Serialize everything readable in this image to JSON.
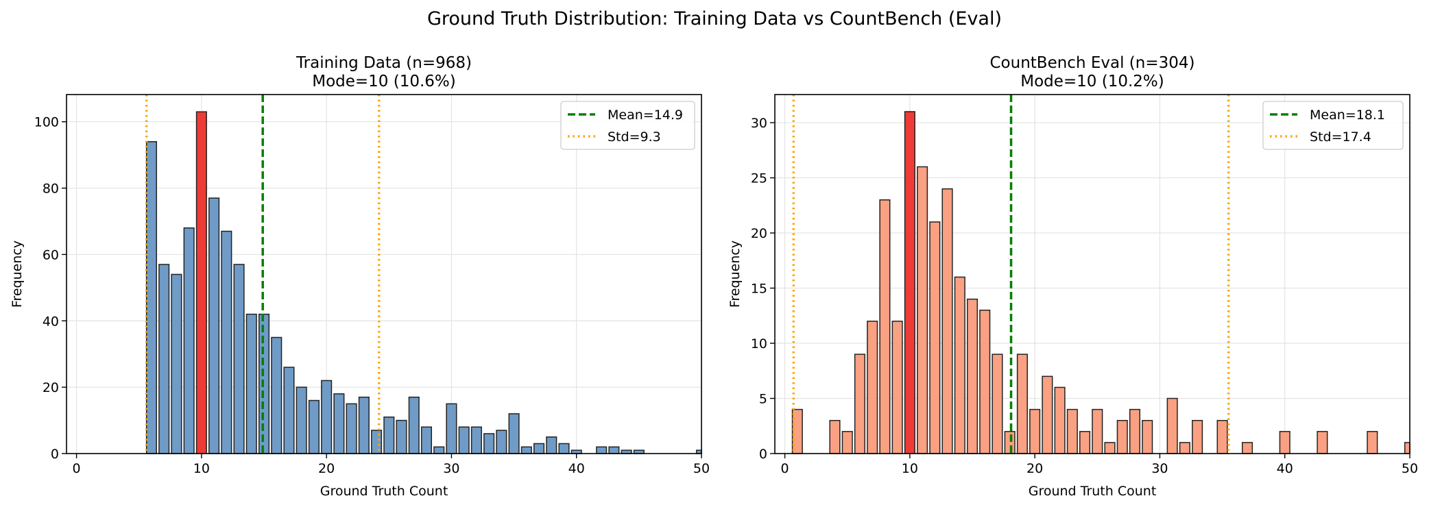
{
  "suptitle": "Ground Truth Distribution: Training Data vs CountBench (Eval)",
  "chart_data": [
    {
      "type": "bar",
      "title_line1": "Training Data (n=968)",
      "title_line2": "Mode=10 (10.6%)",
      "xlabel": "Ground Truth Count",
      "ylabel": "Frequency",
      "xlim": [
        -0.8,
        50
      ],
      "ylim": [
        0,
        108.2
      ],
      "xticks": [
        0,
        10,
        20,
        30,
        40,
        50
      ],
      "yticks": [
        0,
        20,
        40,
        60,
        80,
        100
      ],
      "grid": true,
      "legend_position": "top-right",
      "bar_color": "#6f9bc6",
      "mode_color": "#ef3b36",
      "mode_value": 10,
      "mean": 14.9,
      "std": 9.3,
      "mean_label": "Mean=14.9",
      "std_label": "Std=9.3",
      "mean_color": "#008000",
      "std_color": "#ffa500",
      "x": [
        6,
        7,
        8,
        9,
        10,
        11,
        12,
        13,
        14,
        15,
        16,
        17,
        18,
        19,
        20,
        21,
        22,
        23,
        24,
        25,
        26,
        27,
        28,
        29,
        30,
        31,
        32,
        33,
        34,
        35,
        36,
        37,
        38,
        39,
        40,
        42,
        43,
        44,
        45,
        50
      ],
      "values": [
        94,
        57,
        54,
        68,
        103,
        77,
        67,
        57,
        42,
        42,
        35,
        26,
        20,
        16,
        22,
        18,
        15,
        17,
        7,
        11,
        10,
        17,
        8,
        2,
        15,
        8,
        8,
        6,
        7,
        12,
        2,
        3,
        5,
        3,
        1,
        2,
        2,
        1,
        1,
        1
      ]
    },
    {
      "type": "bar",
      "title_line1": "CountBench Eval (n=304)",
      "title_line2": "Mode=10 (10.2%)",
      "xlabel": "Ground Truth Count",
      "ylabel": "Frequency",
      "xlim": [
        -0.8,
        50
      ],
      "ylim": [
        0,
        32.55
      ],
      "xticks": [
        0,
        10,
        20,
        30,
        40,
        50
      ],
      "yticks": [
        0,
        5,
        10,
        15,
        20,
        25,
        30
      ],
      "grid": true,
      "legend_position": "top-right",
      "bar_color": "#f9a182",
      "mode_color": "#ef3b36",
      "mode_value": 10,
      "mean": 18.1,
      "std": 17.4,
      "mean_label": "Mean=18.1",
      "std_label": "Std=17.4",
      "mean_color": "#008000",
      "std_color": "#ffa500",
      "x": [
        1,
        4,
        5,
        6,
        7,
        8,
        9,
        10,
        11,
        12,
        13,
        14,
        15,
        16,
        17,
        18,
        19,
        20,
        21,
        22,
        23,
        24,
        25,
        26,
        27,
        28,
        29,
        31,
        32,
        33,
        35,
        37,
        40,
        43,
        47,
        50
      ],
      "values": [
        4,
        3,
        2,
        9,
        12,
        23,
        12,
        31,
        26,
        21,
        24,
        16,
        14,
        13,
        9,
        2,
        9,
        4,
        7,
        6,
        4,
        2,
        4,
        1,
        3,
        4,
        3,
        5,
        1,
        3,
        3,
        1,
        2,
        2,
        2,
        1
      ]
    }
  ]
}
